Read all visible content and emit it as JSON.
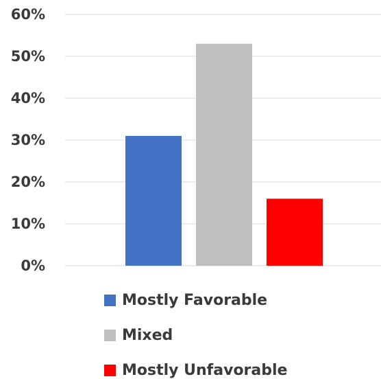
{
  "chart_data": {
    "type": "bar",
    "title": "",
    "xlabel": "",
    "ylabel": "",
    "ylim": [
      0,
      60
    ],
    "yticks": [
      "0%",
      "10%",
      "20%",
      "30%",
      "40%",
      "50%",
      "60%"
    ],
    "grid": true,
    "legend_position": "bottom",
    "categories": [
      "Mostly Favorable",
      "Mixed",
      "Mostly Unfavorable"
    ],
    "values": [
      31,
      53,
      16
    ],
    "colors": [
      "#4472C4",
      "#BFBFBF",
      "#FF0000"
    ]
  }
}
